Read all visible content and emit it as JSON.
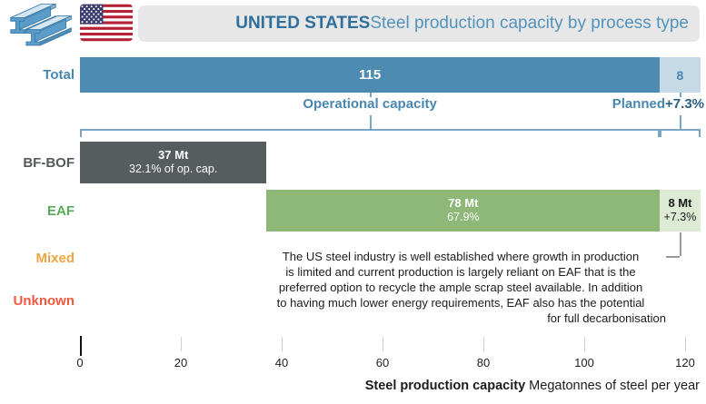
{
  "header": {
    "title_bold": "UNITED STATES",
    "title_rest": " Steel production capacity by process type"
  },
  "chart_data": {
    "type": "bar",
    "orientation": "horizontal",
    "title": "UNITED STATES Steel production capacity by process type",
    "xlabel_bold": "Steel production capacity",
    "xlabel_rest": " Megatonnes of steel per year",
    "unit": "Mt",
    "xlim": [
      0,
      124
    ],
    "x_ticks": [
      0,
      20,
      40,
      60,
      80,
      100,
      120
    ],
    "grid": false,
    "categories": [
      "Total",
      "BF-BOF",
      "EAF",
      "Mixed",
      "Unknown"
    ],
    "series": [
      {
        "name": "Operational capacity",
        "values": [
          115,
          37,
          78,
          0,
          0
        ]
      },
      {
        "name": "Planned",
        "values": [
          8,
          0,
          8,
          0,
          0
        ]
      }
    ],
    "rows": {
      "total": {
        "label": "Total",
        "operational": 115,
        "operational_text": "115",
        "planned": 8,
        "planned_text": "8"
      },
      "bfbof": {
        "label": "BF-BOF",
        "value": 37,
        "line1": "37 Mt",
        "line2": "32.1% of op. cap."
      },
      "eaf": {
        "label": "EAF",
        "start": 37,
        "value": 78,
        "line1": "78 Mt",
        "line2": "67.9%",
        "planned": 8,
        "planned_line1": "8 Mt",
        "planned_line2": "+7.3%"
      },
      "mixed": {
        "label": "Mixed"
      },
      "unknown": {
        "label": "Unknown"
      }
    },
    "group_labels": {
      "operational": "Operational capacity",
      "planned": "Planned",
      "planned_growth": "+7.3%"
    }
  },
  "annotation": {
    "lines": [
      "The US steel industry is well established where growth in production",
      "is limited and current production is largely reliant on EAF that is the",
      "preferred option to recycle the ample scrap steel available. In addition",
      "to having much lower energy requirements, EAF also has the potential",
      "for full decarbonisation"
    ]
  },
  "colors": {
    "operational_blue": "#4e8bb3",
    "planned_light_blue": "#c6d9e6",
    "bfbof_gray": "#575c5f",
    "eaf_green": "#8db877",
    "eaf_light_green": "#ddebd4",
    "total_label_blue": "#4787b0",
    "eaf_label_green": "#58ab57",
    "mixed_label_orange": "#f3a340",
    "unknown_label_red": "#f4573d",
    "planned_growth_dark": "#2a5d80",
    "header_bg": "#e7e7e7",
    "title_dark_blue": "#2f6f9e",
    "title_light_blue": "#5293bc",
    "bracket_blue": "#7aa6c6"
  }
}
